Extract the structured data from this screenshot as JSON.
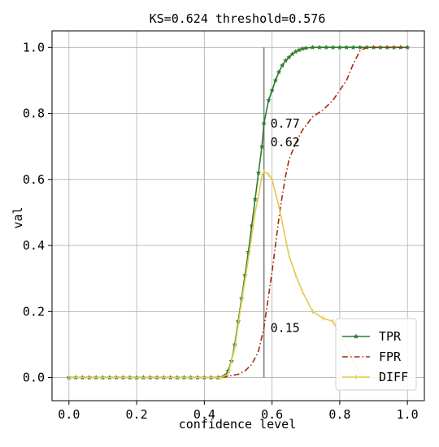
{
  "chart_data": {
    "type": "line",
    "title": "KS=0.624 threshold=0.576",
    "xlabel": "confidence level",
    "ylabel": "val",
    "xlim": [
      -0.05,
      1.05
    ],
    "ylim": [
      -0.07,
      1.05
    ],
    "xticks": [
      "0.0",
      "0.2",
      "0.4",
      "0.6",
      "0.8",
      "1.0"
    ],
    "yticks": [
      "0.0",
      "0.2",
      "0.4",
      "0.6",
      "0.8",
      "1.0"
    ],
    "grid": true,
    "legend": "lower-right",
    "threshold_line": {
      "x": 0.576,
      "y_from": 0.0,
      "y_to": 1.0
    },
    "annotations": [
      {
        "text": "0.77",
        "x": 0.576,
        "y": 0.77
      },
      {
        "text": "0.62",
        "x": 0.576,
        "y": 0.624
      },
      {
        "text": "0.15",
        "x": 0.576,
        "y": 0.15
      }
    ],
    "series": [
      {
        "name": "TPR",
        "color": "#2e7d2e",
        "style": "solid-star",
        "points": [
          [
            0.0,
            0.0
          ],
          [
            0.02,
            0.0
          ],
          [
            0.04,
            0.0
          ],
          [
            0.06,
            0.0
          ],
          [
            0.08,
            0.0
          ],
          [
            0.1,
            0.0
          ],
          [
            0.12,
            0.0
          ],
          [
            0.14,
            0.0
          ],
          [
            0.16,
            0.0
          ],
          [
            0.18,
            0.0
          ],
          [
            0.2,
            0.0
          ],
          [
            0.22,
            0.0
          ],
          [
            0.24,
            0.0
          ],
          [
            0.26,
            0.0
          ],
          [
            0.28,
            0.0
          ],
          [
            0.3,
            0.0
          ],
          [
            0.32,
            0.0
          ],
          [
            0.34,
            0.0
          ],
          [
            0.36,
            0.0
          ],
          [
            0.38,
            0.0
          ],
          [
            0.4,
            0.0
          ],
          [
            0.42,
            0.0
          ],
          [
            0.44,
            0.0
          ],
          [
            0.46,
            0.005
          ],
          [
            0.47,
            0.02
          ],
          [
            0.48,
            0.05
          ],
          [
            0.49,
            0.1
          ],
          [
            0.5,
            0.17
          ],
          [
            0.51,
            0.24
          ],
          [
            0.52,
            0.31
          ],
          [
            0.53,
            0.38
          ],
          [
            0.54,
            0.46
          ],
          [
            0.55,
            0.54
          ],
          [
            0.56,
            0.62
          ],
          [
            0.57,
            0.7
          ],
          [
            0.576,
            0.77
          ],
          [
            0.59,
            0.84
          ],
          [
            0.6,
            0.87
          ],
          [
            0.61,
            0.9
          ],
          [
            0.62,
            0.925
          ],
          [
            0.63,
            0.945
          ],
          [
            0.64,
            0.96
          ],
          [
            0.65,
            0.97
          ],
          [
            0.66,
            0.98
          ],
          [
            0.67,
            0.987
          ],
          [
            0.68,
            0.992
          ],
          [
            0.69,
            0.996
          ],
          [
            0.7,
            0.998
          ],
          [
            0.72,
            1.0
          ],
          [
            0.74,
            1.0
          ],
          [
            0.76,
            1.0
          ],
          [
            0.78,
            1.0
          ],
          [
            0.8,
            1.0
          ],
          [
            0.82,
            1.0
          ],
          [
            0.84,
            1.0
          ],
          [
            0.86,
            1.0
          ],
          [
            0.88,
            1.0
          ],
          [
            0.9,
            1.0
          ],
          [
            0.92,
            1.0
          ],
          [
            0.94,
            1.0
          ],
          [
            0.96,
            1.0
          ],
          [
            0.98,
            1.0
          ],
          [
            1.0,
            1.0
          ]
        ]
      },
      {
        "name": "FPR",
        "color": "#a52a0a",
        "style": "dashdot",
        "points": [
          [
            0.0,
            0.0
          ],
          [
            0.45,
            0.0
          ],
          [
            0.5,
            0.01
          ],
          [
            0.52,
            0.02
          ],
          [
            0.54,
            0.04
          ],
          [
            0.56,
            0.08
          ],
          [
            0.576,
            0.15
          ],
          [
            0.59,
            0.25
          ],
          [
            0.6,
            0.32
          ],
          [
            0.61,
            0.4
          ],
          [
            0.62,
            0.48
          ],
          [
            0.63,
            0.55
          ],
          [
            0.64,
            0.61
          ],
          [
            0.65,
            0.66
          ],
          [
            0.67,
            0.71
          ],
          [
            0.69,
            0.75
          ],
          [
            0.72,
            0.79
          ],
          [
            0.75,
            0.81
          ],
          [
            0.78,
            0.84
          ],
          [
            0.8,
            0.87
          ],
          [
            0.82,
            0.9
          ],
          [
            0.84,
            0.95
          ],
          [
            0.86,
            0.99
          ],
          [
            0.88,
            1.0
          ],
          [
            1.0,
            1.0
          ]
        ]
      },
      {
        "name": "DIFF",
        "color": "#e5c84a",
        "style": "solid-tick",
        "points": [
          [
            0.0,
            0.0
          ],
          [
            0.45,
            0.0
          ],
          [
            0.47,
            0.01
          ],
          [
            0.49,
            0.09
          ],
          [
            0.51,
            0.23
          ],
          [
            0.53,
            0.36
          ],
          [
            0.55,
            0.5
          ],
          [
            0.56,
            0.55
          ],
          [
            0.57,
            0.61
          ],
          [
            0.576,
            0.624
          ],
          [
            0.59,
            0.615
          ],
          [
            0.6,
            0.6
          ],
          [
            0.61,
            0.56
          ],
          [
            0.62,
            0.52
          ],
          [
            0.63,
            0.47
          ],
          [
            0.64,
            0.42
          ],
          [
            0.65,
            0.37
          ],
          [
            0.67,
            0.31
          ],
          [
            0.69,
            0.26
          ],
          [
            0.72,
            0.2
          ],
          [
            0.75,
            0.18
          ],
          [
            0.78,
            0.17
          ],
          [
            0.8,
            0.13
          ],
          [
            0.82,
            0.09
          ],
          [
            0.84,
            0.05
          ],
          [
            0.86,
            0.01
          ],
          [
            0.88,
            0.0
          ],
          [
            1.0,
            0.0
          ]
        ]
      }
    ]
  }
}
